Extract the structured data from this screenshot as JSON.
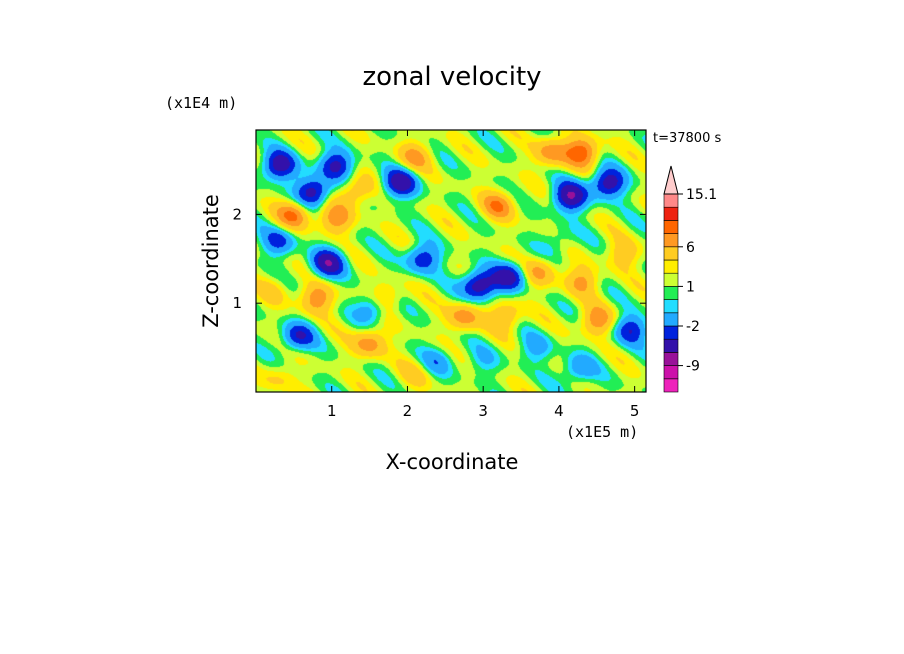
{
  "chart_data": {
    "type": "heatmap",
    "title": "zonal velocity",
    "xlabel": "X-coordinate",
    "ylabel": "Z-coordinate",
    "x_unit": "(x1E5 m)",
    "y_unit": "(x1E4 m)",
    "time_label": "t=37800 s",
    "xlim": [
      0,
      5.15
    ],
    "ylim": [
      0,
      2.95
    ],
    "x_ticks": [
      "1",
      "2",
      "3",
      "4",
      "5"
    ],
    "y_ticks": [
      "1",
      "2"
    ],
    "colorbar": {
      "levels": [
        -15,
        -12,
        -9,
        -6,
        -4,
        -2,
        -1,
        0,
        1,
        2,
        4,
        6,
        9,
        12,
        15.1
      ],
      "colors": [
        "#ee22bb",
        "#cc11aa",
        "#991199",
        "#3311aa",
        "#0022dd",
        "#22aaff",
        "#22ddff",
        "#22ee55",
        "#ccff33",
        "#ffee00",
        "#ffcc22",
        "#ff9922",
        "#ff6600",
        "#ee2211",
        "#ff8888",
        "#ffcccc"
      ],
      "labels": [
        "15.1",
        "6",
        "1",
        "-2",
        "-9"
      ],
      "label_values": [
        15.1,
        6,
        1,
        -2,
        -9
      ]
    },
    "features": [
      {
        "x": 0.3,
        "z": 2.55,
        "u": -8
      },
      {
        "x": 0.75,
        "z": 2.25,
        "u": -8
      },
      {
        "x": 1.05,
        "z": 2.55,
        "u": -7
      },
      {
        "x": 1.9,
        "z": 2.35,
        "u": -8
      },
      {
        "x": 4.15,
        "z": 2.2,
        "u": -9
      },
      {
        "x": 4.65,
        "z": 2.35,
        "u": -8
      },
      {
        "x": 2.95,
        "z": 1.2,
        "u": -9
      },
      {
        "x": 3.35,
        "z": 1.3,
        "u": -7
      },
      {
        "x": 2.2,
        "z": 1.5,
        "u": -6
      },
      {
        "x": 0.95,
        "z": 1.45,
        "u": -8
      },
      {
        "x": 0.3,
        "z": 1.7,
        "u": -5
      },
      {
        "x": 0.55,
        "z": 0.62,
        "u": -6
      },
      {
        "x": 1.55,
        "z": 0.95,
        "u": -5
      },
      {
        "x": 4.95,
        "z": 0.7,
        "u": -6
      },
      {
        "x": 4.25,
        "z": 0.25,
        "u": -4
      },
      {
        "x": 4.3,
        "z": 2.7,
        "u": 7
      },
      {
        "x": 3.9,
        "z": 2.7,
        "u": 5
      },
      {
        "x": 0.5,
        "z": 2.0,
        "u": 6
      },
      {
        "x": 1.05,
        "z": 1.95,
        "u": 5
      },
      {
        "x": 1.3,
        "z": 2.25,
        "u": 4
      },
      {
        "x": 0.8,
        "z": 1.05,
        "u": 5
      },
      {
        "x": 1.7,
        "z": 1.05,
        "u": 4
      },
      {
        "x": 2.75,
        "z": 0.85,
        "u": 5
      },
      {
        "x": 3.3,
        "z": 0.85,
        "u": 4
      },
      {
        "x": 4.5,
        "z": 0.8,
        "u": 5
      },
      {
        "x": 3.75,
        "z": 1.35,
        "u": 4
      },
      {
        "x": 4.3,
        "z": 1.25,
        "u": 4
      },
      {
        "x": 1.5,
        "z": 0.55,
        "u": 5
      },
      {
        "x": 3.2,
        "z": 2.1,
        "u": 5
      },
      {
        "x": 2.1,
        "z": 2.65,
        "u": 4
      },
      {
        "x": 4.85,
        "z": 1.55,
        "u": 3
      },
      {
        "x": 0.3,
        "z": 0.15,
        "u": 2
      },
      {
        "x": 2.1,
        "z": 0.2,
        "u": 2
      },
      {
        "x": 2.4,
        "z": 0.35,
        "u": -3
      },
      {
        "x": 3.0,
        "z": 0.35,
        "u": -2
      },
      {
        "x": 3.7,
        "z": 0.5,
        "u": -3
      },
      {
        "x": 4.0,
        "z": 1.7,
        "u": -2
      },
      {
        "x": 0.25,
        "z": 1.15,
        "u": 2
      }
    ]
  }
}
